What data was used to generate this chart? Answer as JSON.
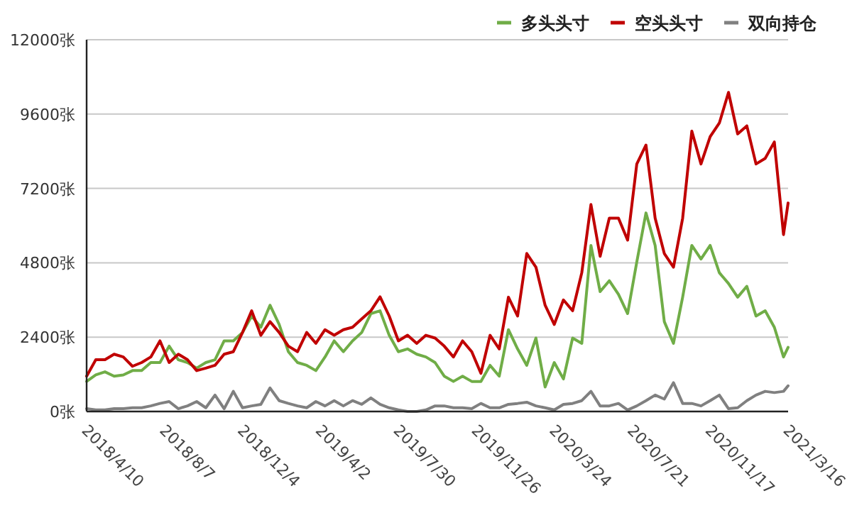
{
  "chart_data": {
    "type": "line",
    "x": [
      "2018-04-10",
      "2018-04-24",
      "2018-05-08",
      "2018-05-22",
      "2018-06-05",
      "2018-06-19",
      "2018-07-03",
      "2018-07-17",
      "2018-07-31",
      "2018-08-14",
      "2018-08-28",
      "2018-09-11",
      "2018-09-25",
      "2018-10-09",
      "2018-10-23",
      "2018-11-06",
      "2018-11-20",
      "2018-12-04",
      "2018-12-18",
      "2019-01-01",
      "2019-01-15",
      "2019-01-29",
      "2019-02-12",
      "2019-02-26",
      "2019-03-12",
      "2019-03-26",
      "2019-04-09",
      "2019-04-23",
      "2019-05-07",
      "2019-05-21",
      "2019-06-04",
      "2019-06-18",
      "2019-07-02",
      "2019-07-16",
      "2019-07-30",
      "2019-08-13",
      "2019-08-27",
      "2019-09-10",
      "2019-09-24",
      "2019-10-08",
      "2019-10-22",
      "2019-11-05",
      "2019-11-19",
      "2019-12-03",
      "2019-12-17",
      "2019-12-31",
      "2020-01-14",
      "2020-01-28",
      "2020-02-11",
      "2020-02-25",
      "2020-03-10",
      "2020-03-24",
      "2020-04-07",
      "2020-04-21",
      "2020-05-05",
      "2020-05-19",
      "2020-06-02",
      "2020-06-16",
      "2020-06-30",
      "2020-07-14",
      "2020-07-28",
      "2020-08-11",
      "2020-08-25",
      "2020-09-08",
      "2020-09-22",
      "2020-10-06",
      "2020-10-20",
      "2020-11-03",
      "2020-11-17",
      "2020-12-01",
      "2020-12-15",
      "2020-12-29",
      "2021-01-12",
      "2021-01-26",
      "2021-02-09",
      "2021-02-23",
      "2021-03-09",
      "2021-03-16"
    ],
    "series": [
      {
        "name": "多头头寸",
        "color": "#70ad47",
        "values": [
          970,
          1180,
          1280,
          1140,
          1180,
          1320,
          1320,
          1580,
          1580,
          2110,
          1670,
          1580,
          1400,
          1580,
          1670,
          2280,
          2280,
          2550,
          3080,
          2720,
          3430,
          2810,
          1930,
          1580,
          1490,
          1320,
          1760,
          2280,
          1930,
          2280,
          2550,
          3160,
          3250,
          2460,
          1930,
          2020,
          1850,
          1760,
          1580,
          1140,
          970,
          1140,
          970,
          970,
          1490,
          1140,
          2640,
          2020,
          1490,
          2370,
          790,
          1580,
          1050,
          2370,
          2200,
          5360,
          3870,
          4220,
          3780,
          3160,
          4830,
          6410,
          5360,
          2900,
          2200,
          3690,
          5360,
          4920,
          5360,
          4480,
          4130,
          3690,
          4040,
          3080,
          3250,
          2720,
          1760,
          2070
        ]
      },
      {
        "name": "空头头寸",
        "color": "#c00000",
        "values": [
          1140,
          1670,
          1670,
          1850,
          1760,
          1460,
          1580,
          1760,
          2280,
          1580,
          1850,
          1670,
          1320,
          1400,
          1490,
          1850,
          1930,
          2550,
          3250,
          2460,
          2900,
          2550,
          2110,
          1930,
          2550,
          2200,
          2640,
          2460,
          2640,
          2720,
          2990,
          3250,
          3700,
          3080,
          2280,
          2460,
          2200,
          2460,
          2370,
          2110,
          1760,
          2280,
          1930,
          1230,
          2460,
          2020,
          3690,
          3080,
          5100,
          4660,
          3430,
          2810,
          3600,
          3250,
          4480,
          6680,
          5010,
          6240,
          6240,
          5530,
          7990,
          8600,
          6240,
          5100,
          4660,
          6240,
          9050,
          7990,
          8870,
          9310,
          10300,
          8960,
          9220,
          7990,
          8170,
          8700,
          5710,
          6730
        ]
      },
      {
        "name": "双向持仓",
        "color": "#808080",
        "values": [
          90,
          50,
          50,
          90,
          90,
          120,
          120,
          180,
          260,
          320,
          90,
          180,
          320,
          120,
          530,
          90,
          650,
          120,
          180,
          230,
          760,
          350,
          260,
          180,
          120,
          320,
          180,
          350,
          180,
          350,
          230,
          440,
          230,
          120,
          50,
          0,
          0,
          50,
          180,
          180,
          120,
          120,
          90,
          260,
          120,
          120,
          230,
          260,
          300,
          180,
          120,
          50,
          230,
          260,
          350,
          650,
          180,
          180,
          260,
          50,
          180,
          350,
          530,
          400,
          930,
          260,
          260,
          180,
          350,
          530,
          90,
          120,
          350,
          530,
          650,
          610,
          650,
          830
        ]
      }
    ],
    "xlim": [
      "2018-04-10",
      "2021-03-16"
    ],
    "xticks": [
      {
        "value": "2018-04-10",
        "label": "2018/4/10"
      },
      {
        "value": "2018-08-07",
        "label": "2018/8/7"
      },
      {
        "value": "2018-12-04",
        "label": "2018/12/4"
      },
      {
        "value": "2019-04-02",
        "label": "2019/4/2"
      },
      {
        "value": "2019-07-30",
        "label": "2019/7/30"
      },
      {
        "value": "2019-11-26",
        "label": "2019/11/26"
      },
      {
        "value": "2020-03-24",
        "label": "2020/3/24"
      },
      {
        "value": "2020-07-21",
        "label": "2020/7/21"
      },
      {
        "value": "2020-11-17",
        "label": "2020/11/17"
      },
      {
        "value": "2021-03-16",
        "label": "2021/3/16"
      }
    ],
    "ylim": [
      0,
      12000
    ],
    "yticks": [
      {
        "value": 0,
        "label": "0张"
      },
      {
        "value": 2400,
        "label": "2400张"
      },
      {
        "value": 4800,
        "label": "4800张"
      },
      {
        "value": 7200,
        "label": "7200张"
      },
      {
        "value": 9600,
        "label": "9600张"
      },
      {
        "value": 12000,
        "label": "12000张"
      }
    ],
    "grid": "y",
    "legend": "top right",
    "marker": "none",
    "line_style": "solid"
  }
}
